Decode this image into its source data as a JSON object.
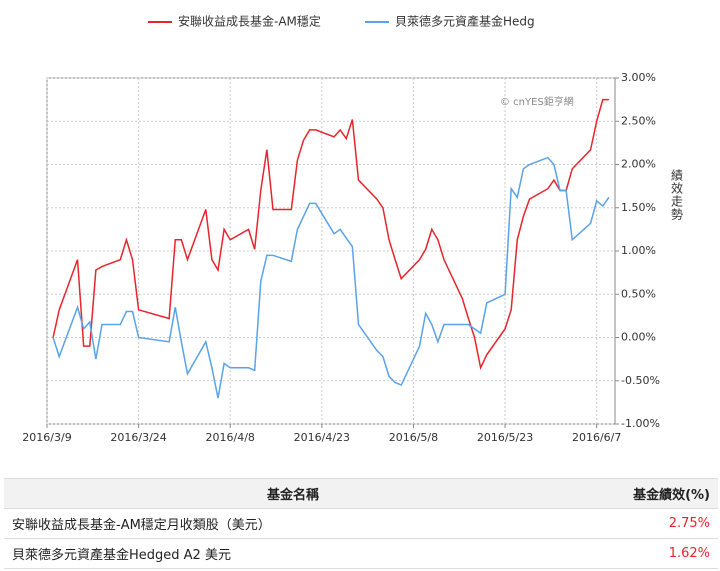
{
  "chart_data": {
    "type": "line",
    "series": [
      {
        "name": "安聯收益成長基金-AM穩定",
        "color": "#e8242c",
        "values": [
          0,
          0.32,
          0.9,
          -0.1,
          -0.1,
          0.78,
          0.82,
          0.9,
          1.13,
          0.9,
          0.32,
          0.22,
          1.13,
          1.13,
          0.9,
          1.48,
          0.9,
          0.78,
          1.25,
          1.13,
          1.25,
          1.02,
          1.7,
          2.17,
          1.48,
          1.48,
          2.05,
          2.28,
          2.4,
          2.4,
          2.32,
          2.4,
          2.3,
          2.52,
          1.82,
          1.6,
          1.5,
          1.13,
          0.9,
          0.68,
          0.9,
          1.02,
          1.25,
          1.13,
          0.9,
          0.45,
          0.22,
          0,
          -0.35,
          -0.2,
          0.1,
          0.32,
          1.13,
          1.4,
          1.6,
          1.72,
          1.82,
          1.7,
          1.7,
          1.95,
          2.17,
          2.5,
          2.75,
          2.75
        ]
      },
      {
        "name": "貝萊德多元資產基金Hedg",
        "color": "#5aa2ea",
        "values": [
          0,
          -0.22,
          0.35,
          0.1,
          0.18,
          -0.25,
          0.15,
          0.15,
          0.3,
          0.3,
          0,
          -0.05,
          0.35,
          -0.05,
          -0.42,
          -0.05,
          -0.35,
          -0.7,
          -0.3,
          -0.35,
          -0.35,
          -0.38,
          0.65,
          0.95,
          0.95,
          0.88,
          1.25,
          1.4,
          1.55,
          1.55,
          1.2,
          1.25,
          1.15,
          1.05,
          0.15,
          -0.15,
          -0.22,
          -0.45,
          -0.52,
          -0.55,
          -0.1,
          0.28,
          0.15,
          -0.05,
          0.15,
          0.15,
          0.15,
          0.1,
          0.05,
          0.4,
          0.5,
          1.72,
          1.62,
          1.95,
          2.0,
          2.08,
          2.0,
          1.7,
          1.7,
          1.13,
          1.32,
          1.58,
          1.52,
          1.62
        ]
      }
    ],
    "x": [
      "2016/3/10",
      "2016/3/11",
      "2016/3/14",
      "2016/3/15",
      "2016/3/16",
      "2016/3/17",
      "2016/3/18",
      "2016/3/21",
      "2016/3/22",
      "2016/3/23",
      "2016/3/24",
      "2016/3/29",
      "2016/3/30",
      "2016/3/31",
      "2016/4/1",
      "2016/4/4",
      "2016/4/5",
      "2016/4/6",
      "2016/4/7",
      "2016/4/8",
      "2016/4/11",
      "2016/4/12",
      "2016/4/13",
      "2016/4/14",
      "2016/4/15",
      "2016/4/18",
      "2016/4/19",
      "2016/4/20",
      "2016/4/21",
      "2016/4/22",
      "2016/4/25",
      "2016/4/26",
      "2016/4/27",
      "2016/4/28",
      "2016/4/29",
      "2016/5/2",
      "2016/5/3",
      "2016/5/4",
      "2016/5/5",
      "2016/5/6",
      "2016/5/9",
      "2016/5/10",
      "2016/5/11",
      "2016/5/12",
      "2016/5/13",
      "2016/5/16",
      "2016/5/17",
      "2016/5/18",
      "2016/5/19",
      "2016/5/20",
      "2016/5/23",
      "2016/5/24",
      "2016/5/25",
      "2016/5/26",
      "2016/5/27",
      "2016/5/30",
      "2016/5/31",
      "2016/6/1",
      "2016/6/2",
      "2016/6/3",
      "2016/6/6",
      "2016/6/7",
      "2016/6/8",
      "2016/6/9"
    ],
    "xlim": [
      "2016/3/9",
      "2016/6/10"
    ],
    "xticks": [
      "2016/3/9",
      "2016/3/24",
      "2016/4/8",
      "2016/4/23",
      "2016/5/8",
      "2016/5/23",
      "2016/6/7"
    ],
    "ylim": [
      -1,
      3
    ],
    "yticks": [
      {
        "value": -1,
        "label": "-1.00%"
      },
      {
        "value": -0.5,
        "label": "-0.50%"
      },
      {
        "value": 0,
        "label": "0.00%"
      },
      {
        "value": 0.5,
        "label": "0.50%"
      },
      {
        "value": 1,
        "label": "1.00%"
      },
      {
        "value": 1.5,
        "label": "1.50%"
      },
      {
        "value": 2,
        "label": "2.00%"
      },
      {
        "value": 2.5,
        "label": "2.50%"
      },
      {
        "value": 3,
        "label": "3.00%"
      }
    ],
    "y_axis_label": "績效走勢",
    "watermark": "© cnYES鉅亨網",
    "grid": true,
    "legend": "top"
  },
  "table": {
    "header": [
      "基金名稱",
      "基金績效(%)"
    ],
    "rows": [
      [
        "安聯收益成長基金-AM穩定月收類股（美元）",
        "2.75%"
      ],
      [
        "貝萊德多元資產基金Hedged A2 美元",
        "1.62%"
      ]
    ]
  }
}
